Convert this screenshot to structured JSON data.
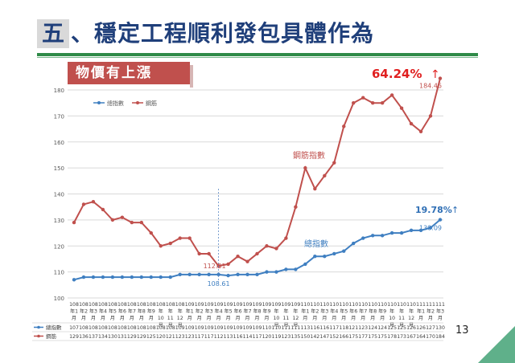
{
  "slide": {
    "title_number": "五",
    "title_text": "、穩定工程順利發包具體作為",
    "banner": "物價有上漲",
    "page_number": "13"
  },
  "chart_data": {
    "type": "line",
    "ylim": [
      100,
      180
    ],
    "yticks": [
      "100",
      "110",
      "120",
      "130",
      "140",
      "150",
      "160",
      "170",
      "180"
    ],
    "categories": [
      [
        "108",
        "年1",
        "月"
      ],
      [
        "108",
        "年2",
        "月"
      ],
      [
        "108",
        "年3",
        "月"
      ],
      [
        "108",
        "年4",
        "月"
      ],
      [
        "108",
        "年5",
        "月"
      ],
      [
        "108",
        "年6",
        "月"
      ],
      [
        "108",
        "年7",
        "月"
      ],
      [
        "108",
        "年8",
        "月"
      ],
      [
        "108",
        "年9",
        "月"
      ],
      [
        "108",
        "年",
        "10",
        "月"
      ],
      [
        "108",
        "年",
        "11",
        "月"
      ],
      [
        "108",
        "年",
        "12",
        "月"
      ],
      [
        "109",
        "年1",
        "月"
      ],
      [
        "109",
        "年2",
        "月"
      ],
      [
        "109",
        "年3",
        "月"
      ],
      [
        "109",
        "年4",
        "月"
      ],
      [
        "109",
        "年5",
        "月"
      ],
      [
        "109",
        "年6",
        "月"
      ],
      [
        "109",
        "年7",
        "月"
      ],
      [
        "109",
        "年8",
        "月"
      ],
      [
        "109",
        "年9",
        "月"
      ],
      [
        "109",
        "年",
        "10",
        "月"
      ],
      [
        "109",
        "年",
        "11",
        "月"
      ],
      [
        "109",
        "年",
        "12",
        "月"
      ],
      [
        "110",
        "年1",
        "月"
      ],
      [
        "110",
        "年2",
        "月"
      ],
      [
        "110",
        "年3",
        "月"
      ],
      [
        "110",
        "年4",
        "月"
      ],
      [
        "110",
        "年5",
        "月"
      ],
      [
        "110",
        "年6",
        "月"
      ],
      [
        "110",
        "年7",
        "月"
      ],
      [
        "110",
        "年8",
        "月"
      ],
      [
        "110",
        "年9",
        "月"
      ],
      [
        "110",
        "年",
        "10",
        "月"
      ],
      [
        "110",
        "年",
        "11",
        "月"
      ],
      [
        "110",
        "年",
        "12",
        "月"
      ],
      [
        "111",
        "年1",
        "月"
      ],
      [
        "111",
        "年2",
        "月"
      ],
      [
        "111",
        "年3",
        "月"
      ]
    ],
    "series": [
      {
        "name": "總指數",
        "color": "#3f7fc1",
        "values": [
          107,
          108,
          108,
          108,
          108,
          108,
          108,
          108,
          108,
          108,
          108,
          109,
          109,
          109,
          109,
          109,
          108.61,
          109,
          109,
          109,
          110,
          110,
          111,
          111,
          113,
          116,
          116,
          117,
          118,
          121,
          123,
          124,
          124,
          125,
          125,
          126,
          126,
          127,
          130.09
        ],
        "table_values": [
          "107",
          "108",
          "108",
          "108",
          "108",
          "108",
          "108",
          "108",
          "108",
          "108",
          "108",
          "109",
          "109",
          "109",
          "109",
          "109",
          "109",
          "109",
          "109",
          "109",
          "110",
          "110",
          "111",
          "111",
          "113",
          "116",
          "116",
          "117",
          "118",
          "121",
          "123",
          "124",
          "124",
          "125",
          "125",
          "126",
          "126",
          "127",
          "130"
        ]
      },
      {
        "name": "鋼筋",
        "color": "#c0504d",
        "values": [
          129,
          136,
          137,
          134,
          130,
          131,
          129,
          129,
          125,
          120,
          121,
          123,
          123,
          117,
          117,
          112.31,
          113,
          116,
          114,
          117,
          120,
          119,
          123,
          135,
          150,
          142,
          147,
          152,
          166,
          175,
          177,
          175,
          175,
          178,
          173,
          167,
          164,
          170,
          184.46
        ],
        "table_values": [
          "129",
          "136",
          "137",
          "134",
          "130",
          "131",
          "129",
          "129",
          "125",
          "120",
          "121",
          "123",
          "123",
          "117",
          "117",
          "112",
          "113",
          "116",
          "114",
          "117",
          "120",
          "119",
          "123",
          "135",
          "150",
          "142",
          "147",
          "152",
          "166",
          "175",
          "177",
          "175",
          "175",
          "178",
          "173",
          "167",
          "164",
          "170",
          "184"
        ]
      }
    ],
    "annotations": {
      "steel_label": "鋼筋指數",
      "total_label": "總指數",
      "steel_pct": "64.24%",
      "total_pct": "19.78%",
      "arrow": "↑",
      "steel_end_label": "184.46",
      "total_end_label": "130.09",
      "steel_min_label": "112.31",
      "total_min_label": "108.61"
    },
    "legend_position": "top-left"
  }
}
